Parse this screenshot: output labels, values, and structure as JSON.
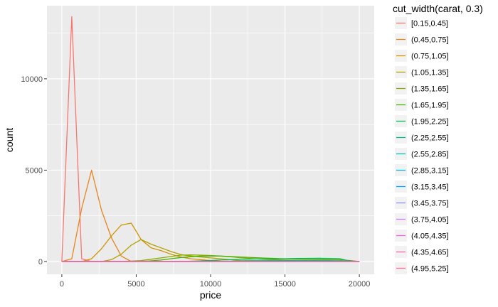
{
  "chart_data": {
    "type": "line",
    "xlabel": "price",
    "ylabel": "count",
    "xlim": [
      -1000,
      21000
    ],
    "ylim": [
      -700,
      14000
    ],
    "xticks": [
      0,
      5000,
      10000,
      15000,
      20000
    ],
    "yticks": [
      0,
      5000,
      10000
    ],
    "x_tick_labels": [
      "0",
      "5000",
      "10000",
      "15000",
      "20000"
    ],
    "y_tick_labels": [
      "0",
      "5000",
      "10000"
    ],
    "grid": true,
    "legend": {
      "title": "cut_width(carat, 0.3)",
      "position": "right"
    },
    "series": [
      {
        "name": "[0.15,0.45]",
        "color": "#F8766D",
        "x": [
          0,
          667,
          1333,
          2000,
          2667,
          3333,
          20000
        ],
        "y": [
          0,
          13400,
          150,
          0,
          0,
          0,
          0
        ]
      },
      {
        "name": "(0.45,0.75]",
        "color": "#E7851E",
        "x": [
          0,
          667,
          1333,
          2000,
          2667,
          3333,
          4000,
          4667,
          20000
        ],
        "y": [
          0,
          150,
          2900,
          5000,
          2800,
          1300,
          300,
          0,
          0
        ]
      },
      {
        "name": "(0.75,1.05]",
        "color": "#D09400",
        "x": [
          0,
          1333,
          2000,
          2667,
          3333,
          4000,
          4667,
          5333,
          6000,
          6667,
          7333,
          8000,
          8667,
          9333,
          10000,
          10667,
          20000
        ],
        "y": [
          0,
          0,
          150,
          700,
          1400,
          2000,
          2100,
          1200,
          750,
          600,
          400,
          250,
          150,
          100,
          50,
          20,
          0
        ]
      },
      {
        "name": "(1.05,1.35]",
        "color": "#B2A100",
        "x": [
          0,
          2667,
          3333,
          4000,
          4667,
          5333,
          6000,
          6667,
          7333,
          8000,
          8667,
          9333,
          10000,
          10667,
          11333,
          12000,
          20000
        ],
        "y": [
          0,
          0,
          100,
          400,
          900,
          1200,
          950,
          750,
          550,
          380,
          300,
          250,
          200,
          150,
          100,
          50,
          0
        ]
      },
      {
        "name": "(1.35,1.65]",
        "color": "#89AC00",
        "x": [
          0,
          4000,
          5333,
          6667,
          8000,
          8667,
          9333,
          10000,
          10667,
          11333,
          12000,
          12667,
          13333,
          14000,
          14667,
          15333,
          16000,
          20000
        ],
        "y": [
          0,
          0,
          50,
          200,
          350,
          360,
          350,
          330,
          300,
          260,
          210,
          170,
          130,
          110,
          90,
          70,
          50,
          0
        ]
      },
      {
        "name": "(1.65,1.95]",
        "color": "#45B500",
        "x": [
          0,
          5333,
          6667,
          8000,
          9333,
          10667,
          12000,
          13333,
          14667,
          16000,
          17333,
          18667,
          19333,
          20000
        ],
        "y": [
          0,
          0,
          80,
          220,
          300,
          300,
          250,
          200,
          160,
          130,
          110,
          90,
          60,
          0
        ]
      },
      {
        "name": "(1.95,2.25]",
        "color": "#00BC51",
        "x": [
          0,
          8000,
          9333,
          10667,
          12000,
          13333,
          14667,
          16000,
          17333,
          18667,
          19333,
          20000
        ],
        "y": [
          0,
          0,
          40,
          80,
          120,
          140,
          150,
          170,
          180,
          160,
          30,
          0
        ]
      },
      {
        "name": "(2.25,2.55]",
        "color": "#00C08E",
        "x": [
          0,
          10000,
          12000,
          14000,
          16000,
          18000,
          20000
        ],
        "y": [
          0,
          0,
          30,
          50,
          60,
          50,
          0
        ]
      },
      {
        "name": "(2.55,2.85]",
        "color": "#00C0B8",
        "x": [
          0,
          20000
        ],
        "y": [
          0,
          0
        ]
      },
      {
        "name": "(2.85,3.15]",
        "color": "#00B8E5",
        "x": [
          0,
          20000
        ],
        "y": [
          0,
          0
        ]
      },
      {
        "name": "(3.15,3.45]",
        "color": "#00ABFD",
        "x": [
          0,
          20000
        ],
        "y": [
          0,
          0
        ]
      },
      {
        "name": "(3.45,3.75]",
        "color": "#8B93FF",
        "x": [
          0,
          20000
        ],
        "y": [
          0,
          0
        ]
      },
      {
        "name": "(3.75,4.05]",
        "color": "#D575FE",
        "x": [
          0,
          20000
        ],
        "y": [
          0,
          0
        ]
      },
      {
        "name": "(4.05,4.35]",
        "color": "#F962DD",
        "x": [
          0,
          20000
        ],
        "y": [
          0,
          0
        ]
      },
      {
        "name": "(4.35,4.65]",
        "color": "#FF65AC",
        "x": [
          0,
          20000
        ],
        "y": [
          0,
          0
        ]
      },
      {
        "name": "(4.95,5.25]",
        "color": "#FF6C91",
        "x": [
          0,
          20000
        ],
        "y": [
          0,
          0
        ]
      }
    ]
  }
}
